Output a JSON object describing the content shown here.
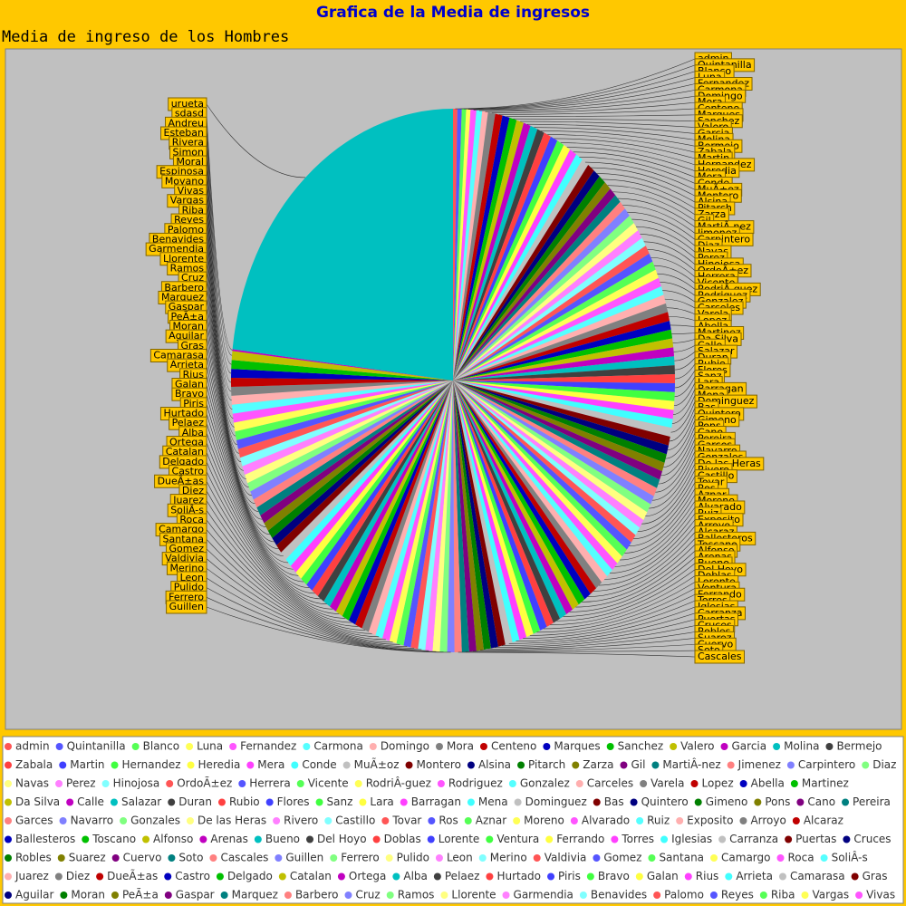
{
  "chart_data": {
    "type": "pie",
    "title": "Grafica de la Media de ingresos",
    "subtitle": "Media de ingreso de los Hombres",
    "categories": [
      "admin",
      "Quintanilla",
      "Blanco",
      "Luna",
      "Fernandez",
      "Carmona",
      "Domingo",
      "Mora",
      "Centeno",
      "Marques",
      "Sanchez",
      "Valero",
      "Garcia",
      "Molina",
      "Bermejo",
      "Zabala",
      "Martin",
      "Hernandez",
      "Heredia",
      "Mera",
      "Conde",
      "MuÃ±oz",
      "Montero",
      "Alsina",
      "Pitarch",
      "Zarza",
      "Gil",
      "MartiÂ-nez",
      "Jimenez",
      "Carpintero",
      "Diaz",
      "Navas",
      "Perez",
      "Hinojosa",
      "OrdoÃ±ez",
      "Herrera",
      "Vicente",
      "RodriÂ-guez",
      "Rodriguez",
      "Gonzalez",
      "Carceles",
      "Varela",
      "Lopez",
      "Abella",
      "Martinez",
      "Da Silva",
      "Calle",
      "Salazar",
      "Duran",
      "Rubio",
      "Flores",
      "Sanz",
      "Lara",
      "Barragan",
      "Mena",
      "Dominguez",
      "Bas",
      "Quintero",
      "Gimeno",
      "Pons",
      "Cano",
      "Pereira",
      "Garces",
      "Navarro",
      "Gonzales",
      "De las Heras",
      "Rivero",
      "Castillo",
      "Tovar",
      "Ros",
      "Aznar",
      "Moreno",
      "Alvarado",
      "Ruiz",
      "Exposito",
      "Arroyo",
      "Alcaraz",
      "Ballesteros",
      "Toscano",
      "Alfonso",
      "Arenas",
      "Bueno",
      "Del Hoyo",
      "Doblas",
      "Lorente",
      "Ventura",
      "Ferrando",
      "Torres",
      "Iglesias",
      "Carranza",
      "Puertas",
      "Cruces",
      "Robles",
      "Suarez",
      "Cuervo",
      "Soto",
      "Cascales",
      "Guillen",
      "Ferrero",
      "Pulido",
      "Leon",
      "Merino",
      "Valdivia",
      "Gomez",
      "Santana",
      "Camargo",
      "Roca",
      "SoliÂ-s",
      "Juarez",
      "Diez",
      "DueÃ±as",
      "Castro",
      "Delgado",
      "Catalan",
      "Ortega",
      "Alba",
      "Pelaez",
      "Hurtado",
      "Piris",
      "Bravo",
      "Galan",
      "Rius",
      "Arrieta",
      "Camarasa",
      "Gras",
      "Aguilar",
      "Moran",
      "PeÃ±a",
      "Gaspar",
      "Marquez",
      "Barbero",
      "Cruz",
      "Ramos",
      "Llorente",
      "Garmendia",
      "Benavides",
      "Palomo",
      "Reyes",
      "Riba",
      "Vargas",
      "Vivas",
      "Moyano",
      "Espinosa",
      "Moral",
      "Simon",
      "Rivera",
      "Esteban",
      "Andreu",
      "sdasd",
      "urueta"
    ],
    "values": [
      0.3,
      0.3,
      0.3,
      0.3,
      0.4,
      0.4,
      0.4,
      0.5,
      0.5,
      0.5,
      0.5,
      0.5,
      0.5,
      0.5,
      0.5,
      0.5,
      0.5,
      0.5,
      0.5,
      0.5,
      0.5,
      0.5,
      0.5,
      0.5,
      0.5,
      0.5,
      0.5,
      0.5,
      0.5,
      0.5,
      0.5,
      0.5,
      0.5,
      0.5,
      0.5,
      0.5,
      0.5,
      0.5,
      0.5,
      0.5,
      0.5,
      0.5,
      0.5,
      0.5,
      0.5,
      0.5,
      0.5,
      0.5,
      0.5,
      0.5,
      0.5,
      0.5,
      0.5,
      0.5,
      0.5,
      0.5,
      0.5,
      0.5,
      0.5,
      0.5,
      0.5,
      0.5,
      0.5,
      0.5,
      0.5,
      0.5,
      0.5,
      0.5,
      0.5,
      0.5,
      0.5,
      0.5,
      0.5,
      0.5,
      0.5,
      0.5,
      0.5,
      0.5,
      0.5,
      0.5,
      0.5,
      0.5,
      0.5,
      0.5,
      0.5,
      0.5,
      0.5,
      0.5,
      0.5,
      0.5,
      0.5,
      0.5,
      0.5,
      0.5,
      0.5,
      0.5,
      0.5,
      0.5,
      0.5,
      0.5,
      0.5,
      0.5,
      0.5,
      0.5,
      0.5,
      0.5,
      0.5,
      0.5,
      0.5,
      0.5,
      0.5,
      0.5,
      0.5,
      0.5,
      0.5,
      0.5,
      0.5,
      0.5,
      0.5,
      0.5,
      0.5,
      0.5,
      0.5,
      0.5,
      0.5,
      0.5,
      0.5,
      0.5,
      0.5,
      0.5,
      0.5,
      0.5,
      0.5,
      0.5,
      0.5,
      0.5,
      0.5,
      0.5,
      0.5,
      0.5,
      0.5,
      0.5,
      0.5,
      0.5,
      0.5,
      0.5,
      0.5,
      0.5,
      0.1,
      22
    ],
    "colors": [
      "#FF5555",
      "#5555FF",
      "#55FF55",
      "#FFFF55",
      "#FF55FF",
      "#55FFFF",
      "#FFAFAF",
      "#808080",
      "#C00000",
      "#0000C0",
      "#00C000",
      "#C0C000",
      "#C000C0",
      "#00C0C0",
      "#404040",
      "#FF4040",
      "#4040FF",
      "#40FF40",
      "#FFFF40",
      "#FF40FF",
      "#40FFFF",
      "#C0C0C0",
      "#800000",
      "#000080",
      "#008000",
      "#808000",
      "#800080",
      "#008080",
      "#FF8080",
      "#8080FF",
      "#80FF80",
      "#FFFF80",
      "#FF80FF",
      "#80FFFF",
      "#FF5555",
      "#5555FF",
      "#55FF55",
      "#FFFF55",
      "#FF55FF",
      "#55FFFF",
      "#FFAFAF",
      "#808080",
      "#C00000",
      "#0000C0",
      "#00C000",
      "#C0C000",
      "#C000C0",
      "#00C0C0",
      "#404040",
      "#FF4040",
      "#4040FF",
      "#40FF40",
      "#FFFF40",
      "#FF40FF",
      "#40FFFF",
      "#C0C0C0",
      "#800000",
      "#000080",
      "#008000",
      "#808000",
      "#800080",
      "#008080",
      "#FF8080",
      "#8080FF",
      "#80FF80",
      "#FFFF80",
      "#FF80FF",
      "#80FFFF",
      "#FF5555",
      "#5555FF",
      "#55FF55",
      "#FFFF55",
      "#FF55FF",
      "#55FFFF",
      "#FFAFAF",
      "#808080",
      "#C00000",
      "#0000C0",
      "#00C000",
      "#C0C000",
      "#C000C0",
      "#00C0C0",
      "#404040",
      "#FF4040",
      "#4040FF",
      "#40FF40",
      "#FFFF40",
      "#FF40FF",
      "#40FFFF",
      "#C0C0C0",
      "#800000",
      "#000080",
      "#008000",
      "#808000",
      "#800080",
      "#008080",
      "#FF8080",
      "#8080FF",
      "#80FF80",
      "#FFFF80",
      "#FF80FF",
      "#80FFFF",
      "#FF5555",
      "#5555FF",
      "#55FF55",
      "#FFFF55",
      "#FF55FF",
      "#55FFFF",
      "#FFAFAF",
      "#808080",
      "#C00000",
      "#0000C0",
      "#00C000",
      "#C0C000",
      "#C000C0",
      "#00C0C0",
      "#404040",
      "#FF4040",
      "#4040FF",
      "#40FF40",
      "#FFFF40",
      "#FF40FF",
      "#40FFFF",
      "#C0C0C0",
      "#800000",
      "#000080",
      "#008000",
      "#808000",
      "#800080",
      "#008080",
      "#FF8080",
      "#8080FF",
      "#80FF80",
      "#FFFF80",
      "#FF80FF",
      "#80FFFF",
      "#FF5555",
      "#5555FF",
      "#55FF55",
      "#FFFF55",
      "#FF55FF",
      "#55FFFF",
      "#FFAFAF",
      "#808080",
      "#C00000",
      "#0000C0",
      "#00C000",
      "#C0C000",
      "#C000C0",
      "#00C0C0"
    ],
    "legend": "bottom"
  }
}
